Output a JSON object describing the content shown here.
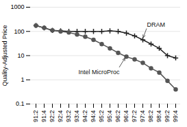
{
  "chart_data": {
    "type": "line",
    "ylabel": "Quality-Adjusted Price",
    "categories": [
      "91:2",
      "91:4",
      "92:2",
      "92:4",
      "93:2",
      "93:4",
      "94:2",
      "94:4",
      "95:2",
      "95:4",
      "96:2",
      "96:4",
      "97:2",
      "97:4",
      "98:2",
      "98:4",
      "99:2",
      "99:4"
    ],
    "series": [
      {
        "name": "DRAM",
        "color": "#222222",
        "marker": "plus",
        "values": [
          175,
          140,
          110,
          105,
          100,
          100,
          100,
          100,
          100,
          105,
          100,
          85,
          65,
          45,
          30,
          20,
          10,
          8
        ]
      },
      {
        "name": "Intel MicroProc",
        "color": "#555555",
        "marker": "circle",
        "values": [
          175,
          140,
          110,
          100,
          90,
          75,
          60,
          45,
          30,
          20,
          13,
          9,
          7,
          5,
          3,
          2,
          0.9,
          0.4
        ]
      }
    ],
    "log": "y",
    "ylim": [
      0.1,
      1000
    ],
    "yticks": [
      0.1,
      1,
      10,
      100,
      1000
    ],
    "grid": true,
    "annotations": [
      {
        "text": "DRAM",
        "x": "97:4",
        "y": 45
      },
      {
        "text": "Intel MicroProc",
        "x": "96:4",
        "y": 9
      }
    ]
  }
}
